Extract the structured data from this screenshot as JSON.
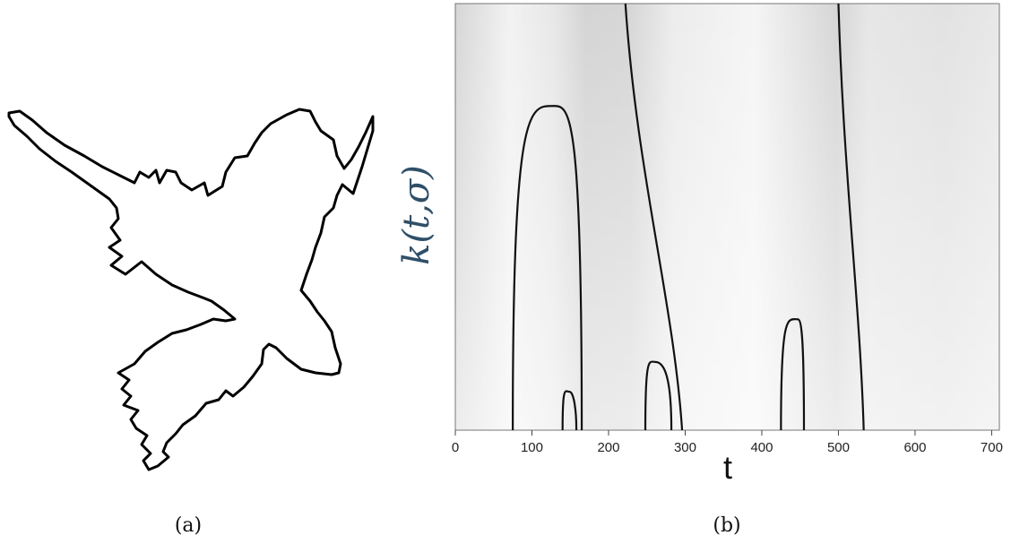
{
  "panel_a": {
    "caption": "(a)",
    "shape_icon": "leaf-contour-icon"
  },
  "panel_b": {
    "caption": "(b)",
    "ylabel": "k(t,σ)",
    "xlabel": "t",
    "colors": {
      "label": "#2f4f68",
      "curve": "#111111",
      "background_light": "#f4f4f4",
      "background_dark": "#d8d8d8"
    },
    "chart_data": {
      "type": "heatmap",
      "xlabel": "t",
      "ylabel": "k(t,σ)",
      "xlim": [
        0,
        710
      ],
      "x_ticks": [
        0,
        100,
        200,
        300,
        400,
        500,
        600,
        700
      ],
      "x_tick_labels": [
        "0",
        "100",
        "200",
        "300",
        "400",
        "500",
        "600",
        "700"
      ],
      "grid": false,
      "zero_crossing_arches": [
        {
          "left_t": 75,
          "right_t": 165,
          "apex_t": 130,
          "apex_level": 0.76
        },
        {
          "left_t": 140,
          "right_t": 158,
          "apex_t": 149,
          "apex_level": 0.09
        },
        {
          "left_t": 248,
          "right_t": 282,
          "apex_t": 261,
          "apex_level": 0.16
        },
        {
          "left_t": 425,
          "right_t": 455,
          "apex_t": 447,
          "apex_level": 0.26
        }
      ],
      "zero_crossing_lines": [
        {
          "t_top": 222,
          "t_bottom": 296
        },
        {
          "t_top": 500,
          "t_bottom": 533
        }
      ]
    }
  }
}
